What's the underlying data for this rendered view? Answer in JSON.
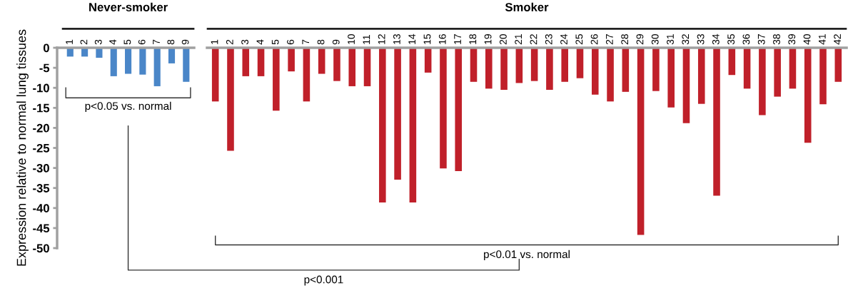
{
  "chart_data": [
    {
      "type": "bar",
      "title": "Never-smoker",
      "ylabel": "Expression relative to normal lung tissues",
      "categories": [
        "1",
        "2",
        "3",
        "4",
        "5",
        "6",
        "7",
        "8",
        "9"
      ],
      "series": [
        {
          "color": "#4a86c8",
          "values": [
            -2.2,
            -2.2,
            -2.5,
            -7.1,
            -6.5,
            -6.7,
            -9.6,
            -3.9,
            -8.5
          ]
        }
      ],
      "ylim": [
        -50,
        0
      ],
      "yticks": [
        -50,
        -45,
        -40,
        -35,
        -30,
        -25,
        -20,
        -15,
        -10,
        -5,
        0
      ],
      "annotations": [
        "p<0.05 vs. normal"
      ]
    },
    {
      "type": "bar",
      "title": "Smoker",
      "categories": [
        "1",
        "2",
        "3",
        "4",
        "5",
        "6",
        "7",
        "8",
        "9",
        "10",
        "11",
        "12",
        "13",
        "14",
        "15",
        "16",
        "17",
        "18",
        "19",
        "20",
        "21",
        "22",
        "23",
        "24",
        "25",
        "26",
        "27",
        "28",
        "29",
        "30",
        "31",
        "32",
        "33",
        "34",
        "35",
        "36",
        "37",
        "38",
        "39",
        "40",
        "41",
        "42"
      ],
      "series": [
        {
          "color": "#c0202a",
          "values": [
            -13.4,
            -25.7,
            -7.1,
            -7.1,
            -15.7,
            -5.9,
            -13.4,
            -6.5,
            -8.3,
            -9.6,
            -9.6,
            -38.6,
            -32.9,
            -38.6,
            -6.2,
            -30.1,
            -30.8,
            -8.5,
            -10.2,
            -10.5,
            -8.8,
            -8.3,
            -10.5,
            -8.5,
            -7.6,
            -11.7,
            -13.4,
            -11.0,
            -46.7,
            -10.8,
            -14.9,
            -18.8,
            -14.0,
            -36.9,
            -6.8,
            -10.2,
            -16.8,
            -12.2,
            -10.2,
            -23.7,
            -14.1,
            -8.5
          ]
        }
      ],
      "ylim": [
        -50,
        0
      ],
      "yticks": [
        -50,
        -45,
        -40,
        -35,
        -30,
        -25,
        -20,
        -15,
        -10,
        -5,
        0
      ],
      "tick_labels": "x",
      "annotations": [
        "p<0.01 vs. normal",
        "p<0.001"
      ]
    }
  ]
}
